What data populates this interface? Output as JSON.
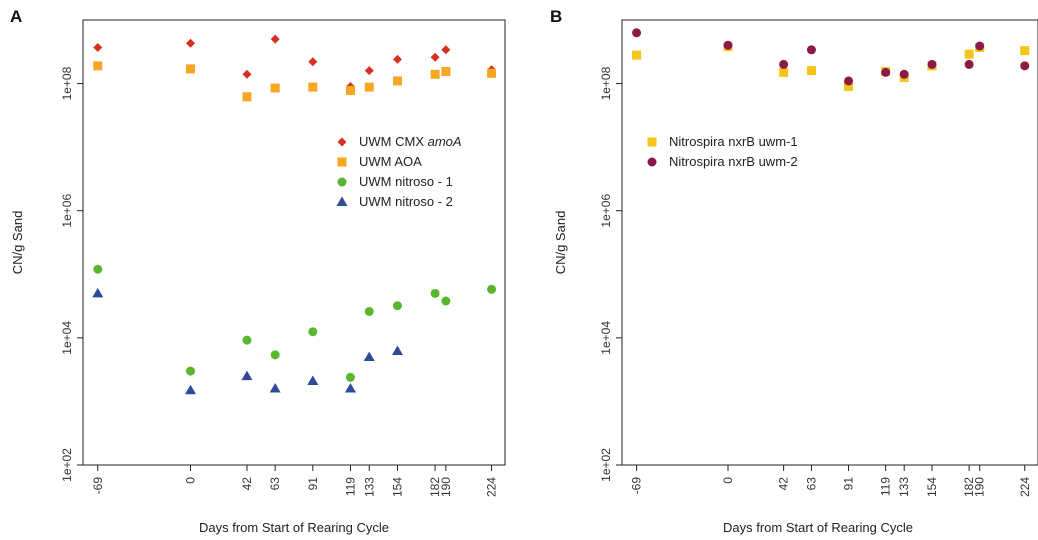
{
  "chart_data": [
    {
      "type": "scatter",
      "panel_label": "A",
      "xlabel": "Days from Start of Rearing Cycle",
      "ylabel": "CN/g Sand",
      "y_scale": "log10",
      "ylim": [
        100,
        1000000000
      ],
      "xlim": [
        -80,
        234
      ],
      "x_ticks": [
        -69,
        0,
        42,
        63,
        91,
        119,
        133,
        154,
        182,
        190,
        224
      ],
      "x_tick_labels": [
        "-69",
        "0",
        "42",
        "63",
        "91",
        "119",
        "133",
        "154",
        "182",
        "190",
        "224"
      ],
      "y_ticks": [
        100,
        10000,
        1000000,
        100000000
      ],
      "y_tick_labels": [
        "1e+02",
        "1e+04",
        "1e+06",
        "1e+08"
      ],
      "legend_position": "right",
      "series": [
        {
          "name": "UWM CMX ",
          "name_italic": "amoA",
          "marker": "diamond",
          "color": "#d7301f",
          "x": [
            -69,
            0,
            42,
            63,
            91,
            119,
            133,
            154,
            182,
            190,
            224
          ],
          "y": [
            370000000,
            430000000,
            140000000,
            500000000,
            220000000,
            90000000,
            160000000,
            240000000,
            260000000,
            340000000,
            165000000
          ]
        },
        {
          "name": "UWM AOA",
          "marker": "square",
          "color": "#f5a623",
          "x": [
            -69,
            0,
            42,
            63,
            91,
            119,
            133,
            154,
            182,
            190,
            224
          ],
          "y": [
            190000000,
            170000000,
            62000000,
            85000000,
            88000000,
            78000000,
            88000000,
            110000000,
            140000000,
            155000000,
            145000000
          ]
        },
        {
          "name": "UWM nitroso - 1",
          "marker": "circle",
          "color": "#5ab52f",
          "x": [
            -69,
            0,
            42,
            63,
            91,
            119,
            133,
            154,
            182,
            190,
            224
          ],
          "y": [
            120000,
            3000,
            9200,
            5400,
            12500,
            2400,
            26000,
            32000,
            50000,
            38000,
            58000
          ]
        },
        {
          "name": "UWM nitroso - 2",
          "marker": "triangle",
          "color": "#2f4a9a",
          "x": [
            -69,
            0,
            42,
            63,
            91,
            119,
            133,
            154
          ],
          "y": [
            50000,
            1500,
            2500,
            1600,
            2100,
            1600,
            5000,
            6200
          ]
        }
      ]
    },
    {
      "type": "scatter",
      "panel_label": "B",
      "xlabel": "Days from Start of Rearing Cycle",
      "ylabel": "CN/g Sand",
      "y_scale": "log10",
      "ylim": [
        100,
        1000000000
      ],
      "xlim": [
        -80,
        234
      ],
      "x_ticks": [
        -69,
        0,
        42,
        63,
        91,
        119,
        133,
        154,
        182,
        190,
        224
      ],
      "x_tick_labels": [
        "-69",
        "0",
        "42",
        "63",
        "91",
        "119",
        "133",
        "154",
        "182",
        "190",
        "224"
      ],
      "y_ticks": [
        100,
        10000,
        1000000,
        100000000
      ],
      "y_tick_labels": [
        "1e+02",
        "1e+04",
        "1e+06",
        "1e+08"
      ],
      "legend_position": "left",
      "series": [
        {
          "name": "Nitrospira nxrB uwm-1",
          "marker": "square",
          "color": "#f5c518",
          "x": [
            -69,
            0,
            42,
            63,
            91,
            119,
            133,
            154,
            182,
            190,
            224
          ],
          "y": [
            280000000,
            380000000,
            150000000,
            160000000,
            90000000,
            155000000,
            125000000,
            190000000,
            290000000,
            370000000,
            330000000
          ]
        },
        {
          "name": "Nitrospira nxrB uwm-2",
          "marker": "circle",
          "color": "#8b1a4a",
          "x": [
            -69,
            0,
            42,
            63,
            91,
            119,
            133,
            154,
            182,
            190,
            224
          ],
          "y": [
            630000000,
            400000000,
            200000000,
            340000000,
            110000000,
            150000000,
            140000000,
            200000000,
            200000000,
            390000000,
            190000000
          ]
        }
      ]
    }
  ]
}
